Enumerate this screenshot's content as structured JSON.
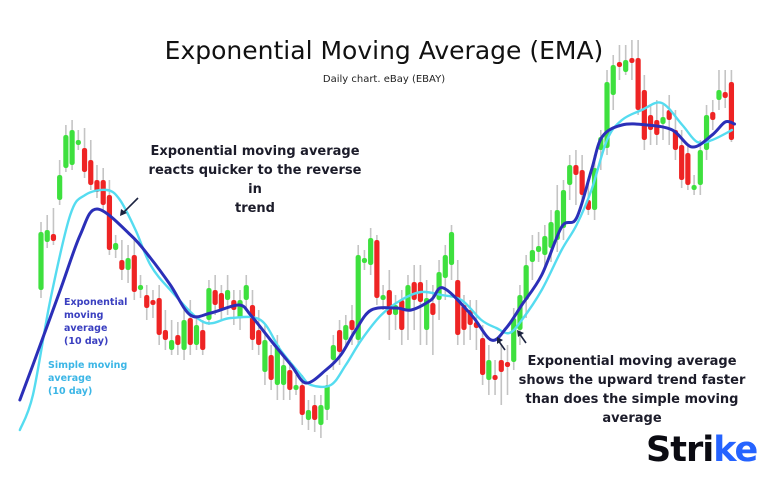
{
  "chart_data": {
    "type": "candlestick",
    "title": "Exponential Moving Average (EMA)",
    "subtitle": "Daily chart. eBay (EBAY)",
    "xlabel": "",
    "ylabel": "",
    "axes_visible": false,
    "grid": false,
    "colors": {
      "up": "#3ee03e",
      "down": "#ee2424",
      "wick": "#c4c4c4",
      "ema": "#2b2fb8",
      "sma": "#55dcf0"
    },
    "candles_ohlc": [
      [
        190,
        258,
        182,
        248
      ],
      [
        238,
        265,
        232,
        250
      ],
      [
        246,
        272,
        235,
        239
      ],
      [
        280,
        320,
        275,
        305
      ],
      [
        312,
        355,
        308,
        345
      ],
      [
        315,
        360,
        310,
        350
      ],
      [
        335,
        350,
        330,
        340
      ],
      [
        332,
        352,
        302,
        308
      ],
      [
        320,
        340,
        290,
        295
      ],
      [
        300,
        315,
        282,
        288
      ],
      [
        300,
        312,
        270,
        275
      ],
      [
        285,
        300,
        225,
        230
      ],
      [
        230,
        245,
        222,
        237
      ],
      [
        220,
        240,
        200,
        210
      ],
      [
        210,
        235,
        197,
        222
      ],
      [
        225,
        240,
        180,
        188
      ],
      [
        190,
        205,
        182,
        195
      ],
      [
        185,
        195,
        160,
        172
      ],
      [
        180,
        190,
        162,
        175
      ],
      [
        182,
        195,
        135,
        145
      ],
      [
        150,
        170,
        130,
        140
      ],
      [
        130,
        160,
        125,
        140
      ],
      [
        145,
        158,
        125,
        135
      ],
      [
        130,
        170,
        120,
        160
      ],
      [
        162,
        180,
        125,
        135
      ],
      [
        135,
        165,
        130,
        155
      ],
      [
        150,
        160,
        125,
        130
      ],
      [
        160,
        200,
        155,
        192
      ],
      [
        190,
        205,
        165,
        175
      ],
      [
        187,
        195,
        160,
        170
      ],
      [
        180,
        205,
        165,
        190
      ],
      [
        180,
        190,
        155,
        170
      ],
      [
        162,
        190,
        150,
        180
      ],
      [
        180,
        205,
        170,
        195
      ],
      [
        175,
        190,
        130,
        140
      ],
      [
        150,
        170,
        125,
        135
      ],
      [
        108,
        155,
        95,
        140
      ],
      [
        125,
        135,
        90,
        100
      ],
      [
        95,
        145,
        80,
        135
      ],
      [
        95,
        125,
        80,
        115
      ],
      [
        110,
        120,
        80,
        90
      ],
      [
        90,
        105,
        85,
        95
      ],
      [
        95,
        105,
        55,
        65
      ],
      [
        60,
        80,
        50,
        70
      ],
      [
        75,
        85,
        48,
        60
      ],
      [
        55,
        85,
        42,
        75
      ],
      [
        70,
        105,
        60,
        95
      ],
      [
        120,
        145,
        110,
        135
      ],
      [
        150,
        160,
        115,
        128
      ],
      [
        140,
        165,
        135,
        155
      ],
      [
        160,
        175,
        135,
        150
      ],
      [
        140,
        235,
        135,
        225
      ],
      [
        218,
        230,
        210,
        222
      ],
      [
        215,
        252,
        205,
        242
      ],
      [
        240,
        245,
        175,
        182
      ],
      [
        180,
        195,
        170,
        185
      ],
      [
        190,
        210,
        140,
        165
      ],
      [
        165,
        185,
        150,
        175
      ],
      [
        180,
        190,
        135,
        150
      ],
      [
        170,
        205,
        140,
        195
      ],
      [
        198,
        215,
        150,
        180
      ],
      [
        198,
        215,
        135,
        178
      ],
      [
        150,
        200,
        135,
        182
      ],
      [
        177,
        195,
        125,
        165
      ],
      [
        180,
        220,
        160,
        208
      ],
      [
        202,
        235,
        180,
        225
      ],
      [
        215,
        255,
        200,
        248
      ],
      [
        200,
        220,
        135,
        145
      ],
      [
        175,
        185,
        135,
        150
      ],
      [
        170,
        180,
        140,
        155
      ],
      [
        158,
        180,
        130,
        152
      ],
      [
        142,
        155,
        95,
        105
      ],
      [
        100,
        135,
        85,
        120
      ],
      [
        105,
        120,
        85,
        100
      ],
      [
        120,
        135,
        75,
        108
      ],
      [
        118,
        135,
        85,
        114
      ],
      [
        118,
        172,
        110,
        162
      ],
      [
        150,
        195,
        135,
        185
      ],
      [
        180,
        225,
        162,
        215
      ],
      [
        218,
        245,
        200,
        230
      ],
      [
        228,
        248,
        218,
        234
      ],
      [
        225,
        255,
        212,
        244
      ],
      [
        232,
        270,
        218,
        258
      ],
      [
        240,
        295,
        228,
        270
      ],
      [
        252,
        300,
        240,
        290
      ],
      [
        295,
        325,
        280,
        315
      ],
      [
        315,
        330,
        275,
        305
      ],
      [
        310,
        325,
        275,
        285
      ],
      [
        280,
        300,
        265,
        270
      ],
      [
        270,
        325,
        260,
        312
      ],
      [
        330,
        350,
        310,
        343
      ],
      [
        332,
        410,
        325,
        398
      ],
      [
        385,
        425,
        370,
        415
      ],
      [
        418,
        435,
        400,
        414
      ],
      [
        408,
        435,
        405,
        420
      ],
      [
        422,
        440,
        400,
        418
      ],
      [
        422,
        440,
        365,
        370
      ],
      [
        390,
        405,
        330,
        340
      ],
      [
        365,
        375,
        335,
        350
      ],
      [
        360,
        380,
        335,
        345
      ],
      [
        356,
        375,
        340,
        363
      ],
      [
        370,
        385,
        335,
        360
      ],
      [
        350,
        370,
        320,
        330
      ],
      [
        335,
        350,
        292,
        300
      ],
      [
        327,
        335,
        290,
        295
      ],
      [
        290,
        305,
        285,
        295
      ],
      [
        295,
        340,
        285,
        330
      ],
      [
        330,
        375,
        320,
        365
      ],
      [
        368,
        380,
        350,
        360
      ],
      [
        380,
        410,
        370,
        390
      ],
      [
        388,
        410,
        372,
        382
      ],
      [
        398,
        410,
        338,
        340
      ]
    ],
    "series": [
      {
        "name": "Exponential moving average (10 day)",
        "type": "line",
        "points": [
          [
            -3.4,
            80
          ],
          [
            -1.3,
            115
          ],
          [
            3.1,
            190
          ],
          [
            6.3,
            245
          ],
          [
            9.0,
            271
          ],
          [
            14.4,
            245
          ],
          [
            17.6,
            222
          ],
          [
            20.8,
            195
          ],
          [
            24.0,
            165
          ],
          [
            27.3,
            167
          ],
          [
            31.8,
            175
          ],
          [
            33.7,
            165
          ],
          [
            36.9,
            140
          ],
          [
            40.2,
            115
          ],
          [
            42.6,
            97
          ],
          [
            45.8,
            110
          ],
          [
            48.2,
            125
          ],
          [
            50.6,
            150
          ],
          [
            53.1,
            170
          ],
          [
            57.1,
            172
          ],
          [
            59.5,
            170
          ],
          [
            62.7,
            180
          ],
          [
            64.7,
            192
          ],
          [
            69.2,
            165
          ],
          [
            72.4,
            140
          ],
          [
            74.8,
            152
          ],
          [
            77.3,
            175
          ],
          [
            80.5,
            205
          ],
          [
            83.7,
            253
          ],
          [
            86.1,
            262
          ],
          [
            88.5,
            310
          ],
          [
            90.2,
            343
          ],
          [
            93.4,
            355
          ],
          [
            97.4,
            355
          ],
          [
            101.5,
            350
          ],
          [
            104.7,
            333
          ],
          [
            107.9,
            345
          ],
          [
            110.0,
            358
          ],
          [
            111.5,
            356
          ]
        ]
      },
      {
        "name": "Simple moving average (10 day)",
        "type": "line",
        "points": [
          [
            -3.4,
            50
          ],
          [
            -1.3,
            85
          ],
          [
            1.5,
            180
          ],
          [
            4.7,
            265
          ],
          [
            7.1,
            285
          ],
          [
            10.6,
            290
          ],
          [
            12.7,
            280
          ],
          [
            15.2,
            250
          ],
          [
            17.6,
            215
          ],
          [
            20.8,
            190
          ],
          [
            26.1,
            158
          ],
          [
            30.5,
            162
          ],
          [
            35.3,
            160
          ],
          [
            38.5,
            130
          ],
          [
            41.8,
            105
          ],
          [
            43.4,
            95
          ],
          [
            46.6,
            95
          ],
          [
            49.0,
            115
          ],
          [
            51.5,
            140
          ],
          [
            54.7,
            165
          ],
          [
            57.9,
            180
          ],
          [
            61.1,
            188
          ],
          [
            64.4,
            185
          ],
          [
            67.6,
            180
          ],
          [
            70.8,
            160
          ],
          [
            73.2,
            152
          ],
          [
            75.3,
            147
          ],
          [
            77.3,
            160
          ],
          [
            80.5,
            190
          ],
          [
            83.7,
            230
          ],
          [
            86.1,
            255
          ],
          [
            88.5,
            290
          ],
          [
            91.0,
            340
          ],
          [
            93.4,
            360
          ],
          [
            96.6,
            370
          ],
          [
            99.8,
            377
          ],
          [
            103.1,
            355
          ],
          [
            105.5,
            338
          ],
          [
            107.9,
            340
          ],
          [
            111.1,
            350
          ]
        ]
      }
    ],
    "annotations": [
      "Exponential moving average reacts quicker to the reverse in trend",
      "Exponential moving average shows the upward trend faster than does the simple moving average"
    ],
    "legend_labels": {
      "ema": [
        "Exponential",
        "moving",
        "average",
        "(10 day)"
      ],
      "sma": [
        "Simple moving",
        "average",
        "(10 day)"
      ]
    }
  },
  "annotation_top": [
    "Exponential moving average",
    "reacts quicker to the reverse in",
    "trend"
  ],
  "annotation_bottom": [
    "Exponential moving average",
    "shows the upward trend faster",
    "than does the simple moving",
    "average"
  ],
  "brand": {
    "logo_text": "Strike",
    "accent": "#2563ff"
  }
}
